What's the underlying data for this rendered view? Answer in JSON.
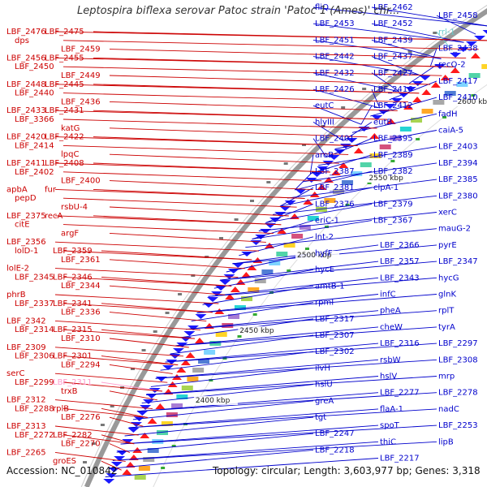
{
  "title": "Leptospira biflexa serovar Patoc strain 'Patoc 1 (Ames)' chr...",
  "accession_text": "Accession: NC_010842",
  "summary_text": "Topology: circular; Length: 3,603,977 bp; Genes: 3,318",
  "colors": {
    "forward_label": "#0000cc",
    "reverse_label": "#cc0000",
    "rna_label": "#66cccc",
    "pseudo_label": "#ff99cc",
    "backbone": "#999999",
    "forward_gene": "#1a1aff",
    "reverse_gene": "#ff1a1a"
  },
  "scale_labels": [
    {
      "text": "2650 kbp"
    },
    {
      "text": "2600 kbp"
    },
    {
      "text": "2550 kbp"
    },
    {
      "text": "2500 kbp"
    },
    {
      "text": "2450 kbp"
    },
    {
      "text": "2400 kbp"
    }
  ],
  "right_labels": [
    "fliQ",
    "LBF_2462",
    "LBF_2458",
    "LBF_2453",
    "LBF_2452",
    "rrl-1",
    "LBF_2451",
    "LBF_2439",
    "LBF_2438",
    "LBF_2442",
    "LBF_2437",
    "recQ-2",
    "LBF_2432",
    "LBF_2427",
    "LBF_2417",
    "LBF_2426",
    "LBF_2416",
    "LBF_2410",
    "eutC",
    "LBF_2412",
    "fadH",
    "hlyIII",
    "eutB",
    "caiA-5",
    "LBF_2401",
    "LBF_2395",
    "LBF_2403",
    "aroB",
    "LBF_2389",
    "LBF_2394",
    "LBF_2387",
    "LBF_2382",
    "LBF_2385",
    "LBF_2381",
    "clpA-1",
    "LBF_2380",
    "LBF_2376",
    "LBF_2379",
    "xerC",
    "eriC-1",
    "LBF_2367",
    "mauG-2",
    "lnt-2",
    "LBF_2366",
    "pyrE",
    "hyfF",
    "LBF_2357",
    "LBF_2347",
    "hycE",
    "LBF_2343",
    "hycG",
    "amtB-1",
    "infC",
    "glnK",
    "rpmI",
    "pheA",
    "rplT",
    "LBF_2317",
    "cheW",
    "tyrA",
    "LBF_2307",
    "LBF_2316",
    "LBF_2297",
    "LBF_2302",
    "rsbW",
    "LBF_2308",
    "ilvH",
    "hslV",
    "mrp",
    "hslU",
    "LBF_2277",
    "LBF_2278",
    "greA",
    "flaA-1",
    "nadC",
    "tgt",
    "spoT",
    "LBF_2253",
    "LBF_2247",
    "thiC",
    "lipB",
    "LBF_2218",
    "LBF_2217"
  ],
  "left_labels": [
    "LBF_2476",
    "LBF_2475",
    "dps",
    "LBF_2459",
    "LBF_2456",
    "LBF_2455",
    "LBF_2450",
    "LBF_2449",
    "LBF_2448",
    "LBF_2445",
    "LBF_2440",
    "LBF_2436",
    "LBF_2433",
    "LBF_2431",
    "LBF_3366",
    "katG",
    "LBF_2420",
    "LBF_2422",
    "LBF_2414",
    "lpqC",
    "LBF_2411",
    "LBF_2408",
    "LBF_2402",
    "LBF_2400",
    "apbA",
    "fur",
    "pepD",
    "rsbU-4",
    "LBF_2375",
    "recA",
    "citE",
    "argF",
    "LBF_2356",
    "LBF_2359",
    "lolD-1",
    "LBF_2361",
    "lolE-2",
    "LBF_2346",
    "LBF_2345",
    "LBF_2344",
    "phrB",
    "LBF_2341",
    "LBF_2337",
    "LBF_2336",
    "LBF_2342",
    "LBF_2315",
    "LBF_2314",
    "LBF_2310",
    "LBF_2309",
    "LBF_2301",
    "LBF_2306",
    "LBF_2294",
    "serC",
    "LBF_2311",
    "LBF_2299",
    "trxB",
    "LBF_2312",
    "rplB",
    "LBF_2288",
    "LBF_2276",
    "LBF_2313",
    "LBF_2282",
    "LBF_2272",
    "LBF_2270",
    "LBF_2265",
    "groES"
  ]
}
